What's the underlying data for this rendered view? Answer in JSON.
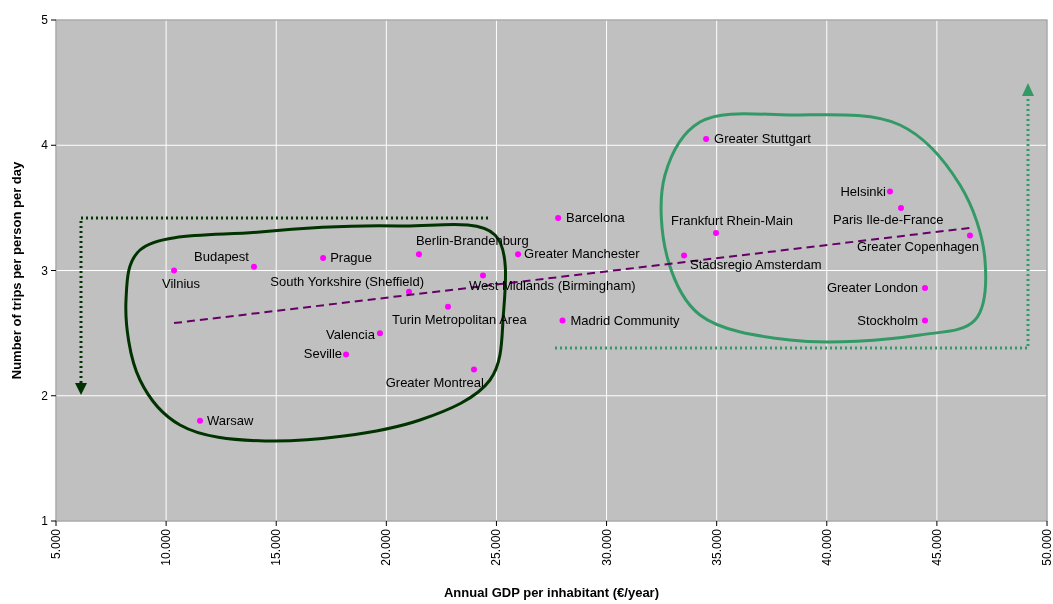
{
  "chart_data": {
    "type": "scatter",
    "xlabel": "Annual GDP per inhabitant (€/year)",
    "ylabel": "Number of trips per person per day",
    "xlim": [
      5000,
      50000
    ],
    "xticks": [
      {
        "value": 5000,
        "label": "5.000"
      },
      {
        "value": 10000,
        "label": "10.000"
      },
      {
        "value": 15000,
        "label": "15.000"
      },
      {
        "value": 20000,
        "label": "20.000"
      },
      {
        "value": 25000,
        "label": "25.000"
      },
      {
        "value": 30000,
        "label": "30.000"
      },
      {
        "value": 35000,
        "label": "35.000"
      },
      {
        "value": 40000,
        "label": "40.000"
      },
      {
        "value": 45000,
        "label": "45.000"
      },
      {
        "value": 50000,
        "label": "50.000"
      }
    ],
    "ylim": [
      1,
      5
    ],
    "yticks": [
      1,
      2,
      3,
      4,
      5
    ],
    "grid": true,
    "series": [
      {
        "marker": "circle",
        "color": "#ff00ff",
        "x": [
          10360,
          11540,
          13990,
          17130,
          21030,
          21480,
          22800,
          19710,
          18170,
          23980,
          24390,
          25980,
          27800,
          28000,
          34520,
          34970,
          33520,
          42870,
          43370,
          46500,
          44460,
          44460
        ],
        "values": [
          3.0,
          1.8,
          3.03,
          3.1,
          2.83,
          3.13,
          2.71,
          2.5,
          2.33,
          2.21,
          2.96,
          3.13,
          3.42,
          2.6,
          4.05,
          3.3,
          3.12,
          3.63,
          3.5,
          3.28,
          2.86,
          2.6
        ]
      },
      {
        "type": "line",
        "color": "#660066",
        "line_style": "dashed",
        "x": [
          10360,
          46500
        ],
        "values": [
          2.58,
          3.34
        ]
      }
    ],
    "annotations": [
      {
        "text": "Vilnius",
        "x": 10360,
        "y": 3.0
      },
      {
        "text": "Warsaw",
        "x": 11540,
        "y": 1.8
      },
      {
        "text": "Budapest",
        "x": 13990,
        "y": 3.03
      },
      {
        "text": "Prague",
        "x": 17130,
        "y": 3.1
      },
      {
        "text": "South Yorkshire (Sheffield)",
        "x": 21030,
        "y": 2.83
      },
      {
        "text": "Berlin-Brandenburg",
        "x": 21480,
        "y": 3.13
      },
      {
        "text": "Turin Metropolitan Area",
        "x": 22800,
        "y": 2.71
      },
      {
        "text": "Valencia",
        "x": 19710,
        "y": 2.5
      },
      {
        "text": "Seville",
        "x": 18170,
        "y": 2.33
      },
      {
        "text": "Greater Montreal",
        "x": 23980,
        "y": 2.21
      },
      {
        "text": "West Midlands (Birmingham)",
        "x": 24390,
        "y": 2.96
      },
      {
        "text": "Greater Manchester",
        "x": 25980,
        "y": 3.13
      },
      {
        "text": "Barcelona",
        "x": 27800,
        "y": 3.42
      },
      {
        "text": "Madrid Community",
        "x": 28000,
        "y": 2.6
      },
      {
        "text": "Greater Stuttgart",
        "x": 34520,
        "y": 4.05
      },
      {
        "text": "Frankfurt Rhein-Main",
        "x": 34970,
        "y": 3.3
      },
      {
        "text": "Stadsregio Amsterdam",
        "x": 33520,
        "y": 3.12
      },
      {
        "text": "Helsinki",
        "x": 42870,
        "y": 3.63
      },
      {
        "text": "Paris Ile-de-France",
        "x": 43370,
        "y": 3.5
      },
      {
        "text": "Greater Copenhagen",
        "x": 46500,
        "y": 3.28
      },
      {
        "text": "Greater London",
        "x": 44460,
        "y": 2.86
      },
      {
        "text": "Stockholm",
        "x": 44460,
        "y": 2.6
      }
    ]
  }
}
